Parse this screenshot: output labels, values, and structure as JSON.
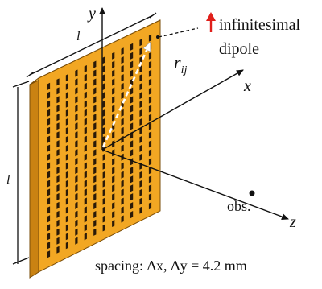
{
  "labels": {
    "dimension_top": "l",
    "dimension_side": "l",
    "axis_y": "y",
    "axis_x": "x",
    "axis_z": "z",
    "vector": "r",
    "vector_sub": "ij",
    "dipole_line1": "infinitesimal",
    "dipole_line2": "dipole",
    "observation": "obs.",
    "spacing": "spacing: Δx, Δy = 4.2 mm"
  },
  "colors": {
    "panel_front": "#F2A723",
    "panel_side": "#C98212",
    "panel_top": "#F7C25A",
    "slot": "#2A1A08",
    "dipole_arrow": "#E0201B",
    "ink": "#111111"
  },
  "icons": {
    "dipole": "red-up-arrow-icon",
    "observation_point": "dot-icon"
  }
}
